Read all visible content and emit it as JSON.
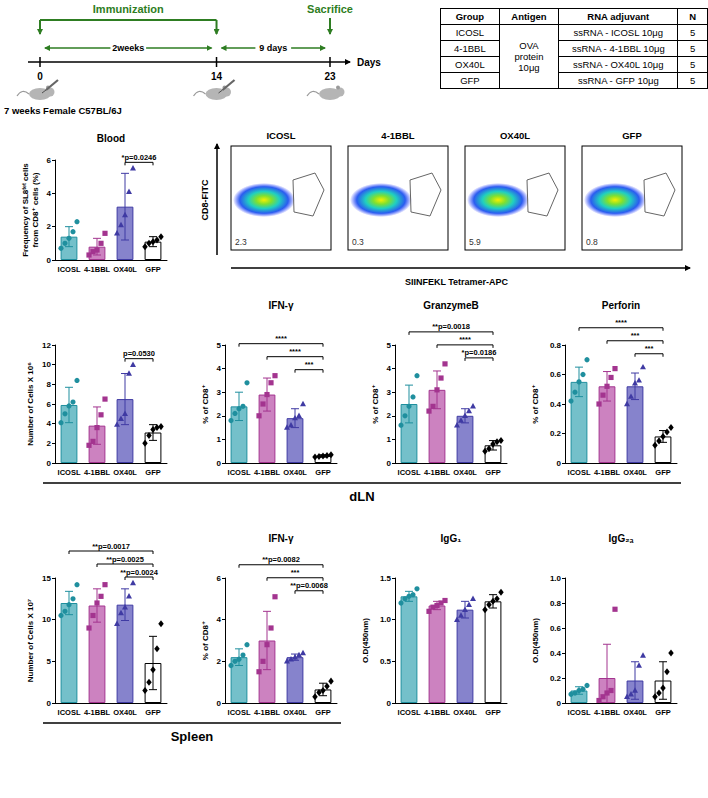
{
  "timeline": {
    "label": "Immunization",
    "days": [
      0,
      14,
      23
    ],
    "unit": "Days",
    "intervals": [
      "2weeks",
      "9 days"
    ],
    "end_label": "Sacrifice",
    "animal": "7 weeks Female C57BL/6J"
  },
  "table": {
    "columns": [
      "Group",
      "Antigen",
      "RNA adjuvant",
      "N"
    ],
    "antigen": "OVA protein 10μg",
    "rows": [
      {
        "group": "ICOSL",
        "adjuvant": "ssRNA - ICOSL 10μg",
        "n": 5
      },
      {
        "group": "4-1BBL",
        "adjuvant": "ssRNA - 4-1BBL 10μg",
        "n": 5
      },
      {
        "group": "OX40L",
        "adjuvant": "ssRNA - OX40L 10μg",
        "n": 5
      },
      {
        "group": "GFP",
        "adjuvant": "ssRNA - GFP 10μg",
        "n": 5
      }
    ]
  },
  "flow": {
    "y_label": "CD8-FITC",
    "x_label": "SIINFEKL Tetramer-APC",
    "panels": [
      {
        "title": "ICOSL",
        "gate_value": 2.3
      },
      {
        "title": "4-1BBL",
        "gate_value": 0.3
      },
      {
        "title": "OX40L",
        "gate_value": 5.9
      },
      {
        "title": "GFP",
        "gate_value": 0.8
      }
    ]
  },
  "section_labels": [
    "dLN",
    "Spleen"
  ],
  "chart_data": [
    {
      "type": "bar",
      "title": "Blood",
      "ylabel": "Frequency of SL8ᵗᵉᵗ cells from CD8⁺ cells (%)",
      "categories": [
        "ICOSL",
        "4-1BBL",
        "OX40L",
        "GFP"
      ],
      "values": [
        1.4,
        0.8,
        3.2,
        1.1
      ],
      "error": [
        0.6,
        0.5,
        2.0,
        0.3
      ],
      "colors": [
        "#74c0ca",
        "#cc82c0",
        "#8683cc",
        "#ffffff"
      ],
      "points": [
        {
          "color": "#1f8f9e",
          "marker": "circle",
          "values": [
            0.7,
            1.0,
            1.3,
            1.7,
            2.3
          ]
        },
        {
          "color": "#a3348f",
          "marker": "square",
          "values": [
            0.3,
            0.5,
            0.6,
            1.0,
            1.6
          ]
        },
        {
          "color": "#3f3aa3",
          "marker": "triangle",
          "values": [
            1.6,
            2.1,
            2.7,
            4.1,
            5.5
          ]
        },
        {
          "color": "#000000",
          "marker": "diamond",
          "values": [
            0.8,
            1.0,
            1.1,
            1.2,
            1.4
          ]
        }
      ],
      "ylim": [
        0,
        6
      ],
      "yticks": [
        0,
        2,
        4,
        6
      ],
      "grid": false,
      "significance": [
        {
          "from": "OX40L",
          "to": "GFP",
          "label": "*p=0.0246"
        }
      ]
    },
    {
      "type": "bar",
      "ylabel": "Number of Cells X 10⁶",
      "categories": [
        "ICOSL",
        "4-1BBL",
        "OX40L",
        "GFP"
      ],
      "values": [
        5.9,
        3.8,
        6.5,
        3.1
      ],
      "error": [
        1.8,
        1.9,
        2.6,
        0.8
      ],
      "colors": [
        "#74c0ca",
        "#cc82c0",
        "#8683cc",
        "#ffffff"
      ],
      "points": [
        {
          "color": "#1f8f9e",
          "marker": "circle",
          "values": [
            4.1,
            5.0,
            5.8,
            6.2,
            8.4
          ]
        },
        {
          "color": "#a3348f",
          "marker": "square",
          "values": [
            1.8,
            2.2,
            3.6,
            4.9,
            6.5
          ]
        },
        {
          "color": "#3f3aa3",
          "marker": "triangle",
          "values": [
            3.9,
            4.5,
            5.0,
            9.1,
            10.0
          ]
        },
        {
          "color": "#000000",
          "marker": "diamond",
          "values": [
            2.0,
            2.8,
            3.4,
            3.6,
            3.7
          ]
        }
      ],
      "ylim": [
        0,
        12
      ],
      "yticks": [
        0,
        2,
        4,
        6,
        8,
        10,
        12
      ],
      "grid": false,
      "significance": [
        {
          "from": "OX40L",
          "to": "GFP",
          "label": "p=0.0530"
        }
      ]
    },
    {
      "type": "bar",
      "title": "IFN-γ",
      "ylabel": "% of CD8⁺",
      "categories": [
        "ICOSL",
        "4-1BBL",
        "OX40L",
        "GFP"
      ],
      "values": [
        2.4,
        2.9,
        1.9,
        0.3
      ],
      "error": [
        0.6,
        0.7,
        0.4,
        0.05
      ],
      "colors": [
        "#74c0ca",
        "#cc82c0",
        "#8683cc",
        "#ffffff"
      ],
      "points": [
        {
          "color": "#1f8f9e",
          "marker": "circle",
          "values": [
            1.8,
            2.1,
            2.3,
            2.4,
            3.4
          ]
        },
        {
          "color": "#a3348f",
          "marker": "square",
          "values": [
            2.0,
            2.5,
            2.9,
            3.4,
            3.7
          ]
        },
        {
          "color": "#3f3aa3",
          "marker": "triangle",
          "values": [
            1.5,
            1.6,
            1.9,
            2.0,
            2.5
          ]
        },
        {
          "color": "#000000",
          "marker": "diamond",
          "values": [
            0.25,
            0.28,
            0.3,
            0.32,
            0.35
          ]
        }
      ],
      "ylim": [
        0,
        5
      ],
      "yticks": [
        0,
        1,
        2,
        3,
        4,
        5
      ],
      "grid": false,
      "significance": [
        {
          "from": "ICOSL",
          "to": "GFP",
          "label": "****"
        },
        {
          "from": "4-1BBL",
          "to": "GFP",
          "label": "****"
        },
        {
          "from": "OX40L",
          "to": "GFP",
          "label": "***"
        }
      ]
    },
    {
      "type": "bar",
      "title": "GranzymeB",
      "ylabel": "% of CD8⁺",
      "categories": [
        "ICOSL",
        "4-1BBL",
        "OX40L",
        "GFP"
      ],
      "values": [
        2.5,
        3.1,
        2.0,
        0.75
      ],
      "error": [
        0.8,
        0.8,
        0.3,
        0.2
      ],
      "colors": [
        "#74c0ca",
        "#cc82c0",
        "#8683cc",
        "#ffffff"
      ],
      "points": [
        {
          "color": "#1f8f9e",
          "marker": "circle",
          "values": [
            1.6,
            2.0,
            2.4,
            2.8,
            3.7
          ]
        },
        {
          "color": "#a3348f",
          "marker": "square",
          "values": [
            2.2,
            2.4,
            3.1,
            3.6,
            4.2
          ]
        },
        {
          "color": "#3f3aa3",
          "marker": "triangle",
          "values": [
            1.6,
            1.8,
            2.0,
            2.2,
            2.4
          ]
        },
        {
          "color": "#000000",
          "marker": "diamond",
          "values": [
            0.5,
            0.6,
            0.8,
            0.9,
            0.95
          ]
        }
      ],
      "ylim": [
        0,
        5
      ],
      "yticks": [
        0,
        1,
        2,
        3,
        4,
        5
      ],
      "grid": false,
      "significance": [
        {
          "from": "ICOSL",
          "to": "GFP",
          "label": "**p=0.0018"
        },
        {
          "from": "4-1BBL",
          "to": "GFP",
          "label": "****"
        },
        {
          "from": "OX40L",
          "to": "GFP",
          "label": "*p=0.0186"
        }
      ]
    },
    {
      "type": "bar",
      "title": "Perforin",
      "ylabel": "% of CD8⁺",
      "categories": [
        "ICOSL",
        "4-1BBL",
        "OX40L",
        "GFP"
      ],
      "values": [
        0.55,
        0.52,
        0.52,
        0.18
      ],
      "error": [
        0.1,
        0.1,
        0.09,
        0.04
      ],
      "colors": [
        "#74c0ca",
        "#cc82c0",
        "#8683cc",
        "#ffffff"
      ],
      "points": [
        {
          "color": "#1f8f9e",
          "marker": "circle",
          "values": [
            0.42,
            0.48,
            0.55,
            0.6,
            0.7
          ]
        },
        {
          "color": "#a3348f",
          "marker": "square",
          "values": [
            0.4,
            0.46,
            0.52,
            0.58,
            0.64
          ]
        },
        {
          "color": "#3f3aa3",
          "marker": "triangle",
          "values": [
            0.4,
            0.45,
            0.54,
            0.56,
            0.65
          ]
        },
        {
          "color": "#000000",
          "marker": "diamond",
          "values": [
            0.12,
            0.15,
            0.18,
            0.21,
            0.24
          ]
        }
      ],
      "ylim": [
        0,
        0.8
      ],
      "yticks": [
        0,
        0.2,
        0.4,
        0.6,
        0.8
      ],
      "grid": false,
      "significance": [
        {
          "from": "ICOSL",
          "to": "GFP",
          "label": "****"
        },
        {
          "from": "4-1BBL",
          "to": "GFP",
          "label": "***"
        },
        {
          "from": "OX40L",
          "to": "GFP",
          "label": "***"
        }
      ]
    },
    {
      "type": "bar",
      "ylabel": "Number of Cells X 10⁷",
      "categories": [
        "ICOSL",
        "4-1BBL",
        "OX40L",
        "GFP"
      ],
      "values": [
        12,
        11.7,
        11.8,
        4.8
      ],
      "error": [
        1.4,
        2.0,
        1.9,
        3.2
      ],
      "colors": [
        "#74c0ca",
        "#cc82c0",
        "#8683cc",
        "#ffffff"
      ],
      "points": [
        {
          "color": "#1f8f9e",
          "marker": "circle",
          "values": [
            10.5,
            11.0,
            11.8,
            12.5,
            14.2
          ]
        },
        {
          "color": "#a3348f",
          "marker": "square",
          "values": [
            9.0,
            10.5,
            12.0,
            12.8,
            14.2
          ]
        },
        {
          "color": "#3f3aa3",
          "marker": "triangle",
          "values": [
            9.5,
            10.8,
            11.5,
            12.8,
            14.4
          ]
        },
        {
          "color": "#000000",
          "marker": "diamond",
          "values": [
            1.5,
            2.5,
            4.0,
            6.5,
            9.5
          ]
        }
      ],
      "ylim": [
        0,
        15
      ],
      "yticks": [
        0,
        5,
        10,
        15
      ],
      "grid": false,
      "significance": [
        {
          "from": "ICOSL",
          "to": "GFP",
          "label": "**p=0.0017"
        },
        {
          "from": "4-1BBL",
          "to": "GFP",
          "label": "**p=0.0025"
        },
        {
          "from": "OX40L",
          "to": "GFP",
          "label": "**p=0.0024"
        }
      ]
    },
    {
      "type": "bar",
      "title": "IFN-γ",
      "ylabel": "% of CD8⁺",
      "categories": [
        "ICOSL",
        "4-1BBL",
        "OX40L",
        "GFP"
      ],
      "values": [
        2.2,
        3.0,
        2.2,
        0.65
      ],
      "error": [
        0.4,
        1.4,
        0.15,
        0.3
      ],
      "colors": [
        "#74c0ca",
        "#cc82c0",
        "#8683cc",
        "#ffffff"
      ],
      "points": [
        {
          "color": "#1f8f9e",
          "marker": "circle",
          "values": [
            1.8,
            2.0,
            2.1,
            2.3,
            2.8
          ]
        },
        {
          "color": "#a3348f",
          "marker": "square",
          "values": [
            1.5,
            2.0,
            2.8,
            3.6,
            5.1
          ]
        },
        {
          "color": "#3f3aa3",
          "marker": "triangle",
          "values": [
            2.0,
            2.1,
            2.2,
            2.3,
            2.4
          ]
        },
        {
          "color": "#000000",
          "marker": "diamond",
          "values": [
            0.3,
            0.5,
            0.6,
            0.8,
            1.05
          ]
        }
      ],
      "ylim": [
        0,
        6
      ],
      "yticks": [
        0,
        2,
        4,
        6
      ],
      "grid": false,
      "significance": [
        {
          "from": "ICOSL",
          "to": "GFP",
          "label": "**p=0.0082"
        },
        {
          "from": "4-1BBL",
          "to": "GFP",
          "label": "***"
        },
        {
          "from": "OX40L",
          "to": "GFP",
          "label": "**p=0.0068"
        }
      ]
    },
    {
      "type": "bar",
      "title": "IgG₁",
      "ylabel": "O.D(450nm)",
      "categories": [
        "ICOSL",
        "4-1BBL",
        "OX40L",
        "GFP"
      ],
      "values": [
        1.28,
        1.17,
        1.12,
        1.22
      ],
      "error": [
        0.06,
        0.05,
        0.1,
        0.08
      ],
      "colors": [
        "#74c0ca",
        "#cc82c0",
        "#8683cc",
        "#ffffff"
      ],
      "points": [
        {
          "color": "#1f8f9e",
          "marker": "circle",
          "values": [
            1.2,
            1.25,
            1.28,
            1.3,
            1.37
          ]
        },
        {
          "color": "#a3348f",
          "marker": "square",
          "values": [
            1.1,
            1.15,
            1.17,
            1.2,
            1.23
          ]
        },
        {
          "color": "#3f3aa3",
          "marker": "triangle",
          "values": [
            1.0,
            1.05,
            1.12,
            1.18,
            1.25
          ]
        },
        {
          "color": "#000000",
          "marker": "diamond",
          "values": [
            1.12,
            1.18,
            1.22,
            1.25,
            1.33
          ]
        }
      ],
      "ylim": [
        0,
        1.5
      ],
      "yticks": [
        0,
        0.5,
        {
          "value": 1,
          "label": "1.0"
        },
        1.5
      ],
      "grid": false
    },
    {
      "type": "bar",
      "title": "IgG₂ₐ",
      "ylabel": "O.D(450nm)",
      "categories": [
        "ICOSL",
        "4-1BBL",
        "OX40L",
        "GFP"
      ],
      "values": [
        0.1,
        0.2,
        0.18,
        0.18
      ],
      "error": [
        0.03,
        0.27,
        0.15,
        0.15
      ],
      "colors": [
        "#74c0ca",
        "#cc82c0",
        "#8683cc",
        "#ffffff"
      ],
      "points": [
        {
          "color": "#1f8f9e",
          "marker": "circle",
          "values": [
            0.07,
            0.08,
            0.1,
            0.11,
            0.14
          ]
        },
        {
          "color": "#a3348f",
          "marker": "square",
          "values": [
            0.02,
            0.05,
            0.08,
            0.1,
            0.75
          ]
        },
        {
          "color": "#3f3aa3",
          "marker": "triangle",
          "values": [
            0.05,
            0.07,
            0.1,
            0.3,
            0.38
          ]
        },
        {
          "color": "#000000",
          "marker": "diamond",
          "values": [
            0.05,
            0.08,
            0.12,
            0.25,
            0.4
          ]
        }
      ],
      "ylim": [
        0,
        1
      ],
      "yticks": [
        0,
        0.2,
        0.4,
        0.6,
        0.8,
        {
          "value": 1,
          "label": "1.0"
        }
      ],
      "grid": false
    }
  ]
}
